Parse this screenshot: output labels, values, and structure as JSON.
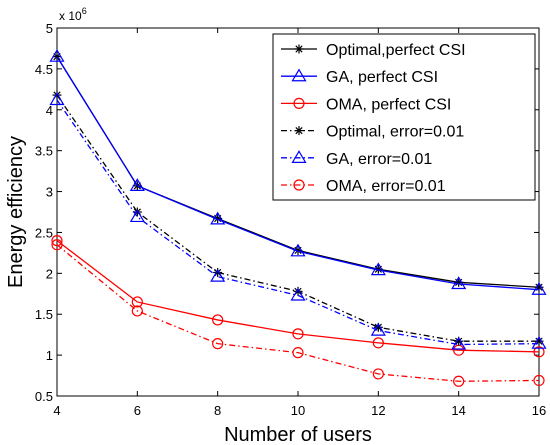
{
  "chart_data": {
    "type": "line",
    "xlabel": "Number of users",
    "ylabel": "Energy efficiency",
    "y_multiplier_label": "x 10",
    "y_multiplier_exp": "6",
    "xlim": [
      4,
      16
    ],
    "ylim": [
      0.5,
      5
    ],
    "x": [
      4,
      6,
      8,
      10,
      12,
      14,
      16
    ],
    "x_ticks": [
      "4",
      "6",
      "8",
      "10",
      "12",
      "14",
      "16"
    ],
    "y_tick_values": [
      0.5,
      1,
      1.5,
      2,
      2.5,
      3,
      3.5,
      4,
      4.5,
      5
    ],
    "y_ticks": [
      "0.5",
      "1",
      "1.5",
      "2",
      "2.5",
      "3",
      "3.5",
      "4",
      "4.5",
      "5"
    ],
    "grid": false,
    "legend_position": "top-right",
    "series": [
      {
        "name": "Optimal,perfect CSI",
        "values": [
          4.65,
          3.07,
          2.67,
          2.28,
          2.05,
          1.89,
          1.83
        ],
        "color": "#000000",
        "marker": "star",
        "dash": "solid"
      },
      {
        "name": "GA, perfect CSI",
        "values": [
          4.65,
          3.07,
          2.66,
          2.27,
          2.04,
          1.87,
          1.8
        ],
        "color": "#0000ff",
        "marker": "triangle",
        "dash": "solid"
      },
      {
        "name": "OMA, perfect CSI",
        "values": [
          2.4,
          1.65,
          1.43,
          1.26,
          1.15,
          1.06,
          1.04
        ],
        "color": "#ff0000",
        "marker": "circle",
        "dash": "solid"
      },
      {
        "name": "Optimal, error=0.01",
        "values": [
          4.18,
          2.75,
          2.01,
          1.78,
          1.34,
          1.17,
          1.17
        ],
        "color": "#000000",
        "marker": "star",
        "dash": "dashdot"
      },
      {
        "name": "GA, error=0.01",
        "values": [
          4.12,
          2.69,
          1.96,
          1.73,
          1.3,
          1.13,
          1.14
        ],
        "color": "#0000ff",
        "marker": "triangle",
        "dash": "dashdot"
      },
      {
        "name": "OMA, error=0.01",
        "values": [
          2.35,
          1.54,
          1.14,
          1.03,
          0.77,
          0.68,
          0.69
        ],
        "color": "#ff0000",
        "marker": "circle",
        "dash": "dashdot"
      }
    ]
  }
}
